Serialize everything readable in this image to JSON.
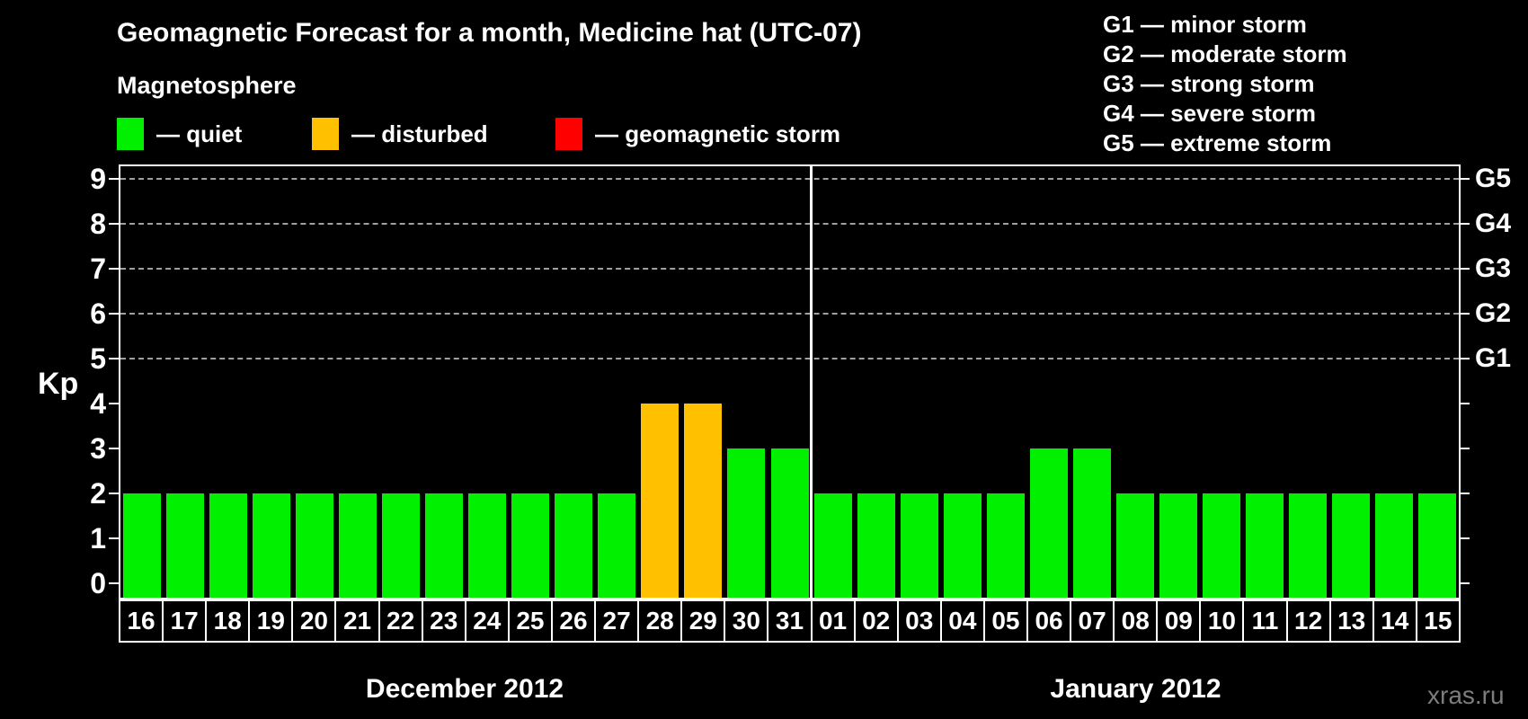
{
  "title": "Geomagnetic Forecast for a month, Medicine hat (UTC-07)",
  "subtitle": "Magnetosphere",
  "legend": {
    "items": [
      {
        "key": "quiet",
        "label": "— quiet",
        "color": "#00f000"
      },
      {
        "key": "disturbed",
        "label": "— disturbed",
        "color": "#ffc000"
      },
      {
        "key": "storm",
        "label": "— geomagnetic storm",
        "color": "#ff0000"
      }
    ]
  },
  "storm_scale": {
    "lines": [
      "G1 — minor storm",
      "G2 — moderate storm",
      "G3 — strong storm",
      "G4 — severe storm",
      "G5 — extreme storm"
    ]
  },
  "watermark": "xras.ru",
  "chart_data": {
    "type": "bar",
    "title": "Geomagnetic Forecast for a month, Medicine hat (UTC-07)",
    "xlabel": "",
    "ylabel": "Kp",
    "ylim": [
      0,
      9
    ],
    "yticks": [
      0,
      1,
      2,
      3,
      4,
      5,
      6,
      7,
      8,
      9
    ],
    "grid": "dashed horizontal gridlines at Kp 5-9 only",
    "right_axis": {
      "labels": [
        "G1",
        "G2",
        "G3",
        "G4",
        "G5"
      ],
      "at_kp": [
        5,
        6,
        7,
        8,
        9
      ]
    },
    "colors": {
      "quiet": "#00f000",
      "disturbed": "#ffc000",
      "storm": "#ff0000"
    },
    "months": [
      {
        "label": "December 2012",
        "categories": [
          "16",
          "17",
          "18",
          "19",
          "20",
          "21",
          "22",
          "23",
          "24",
          "25",
          "26",
          "27",
          "28",
          "29",
          "30",
          "31"
        ],
        "values": [
          2,
          2,
          2,
          2,
          2,
          2,
          2,
          2,
          2,
          2,
          2,
          2,
          4,
          4,
          3,
          3
        ],
        "states": [
          "quiet",
          "quiet",
          "quiet",
          "quiet",
          "quiet",
          "quiet",
          "quiet",
          "quiet",
          "quiet",
          "quiet",
          "quiet",
          "quiet",
          "disturbed",
          "disturbed",
          "quiet",
          "quiet"
        ]
      },
      {
        "label": "January 2012",
        "categories": [
          "01",
          "02",
          "03",
          "04",
          "05",
          "06",
          "07",
          "08",
          "09",
          "10",
          "11",
          "12",
          "13",
          "14",
          "15"
        ],
        "values": [
          2,
          2,
          2,
          2,
          2,
          3,
          3,
          2,
          2,
          2,
          2,
          2,
          2,
          2,
          2
        ],
        "states": [
          "quiet",
          "quiet",
          "quiet",
          "quiet",
          "quiet",
          "quiet",
          "quiet",
          "quiet",
          "quiet",
          "quiet",
          "quiet",
          "quiet",
          "quiet",
          "quiet",
          "quiet"
        ]
      }
    ]
  }
}
